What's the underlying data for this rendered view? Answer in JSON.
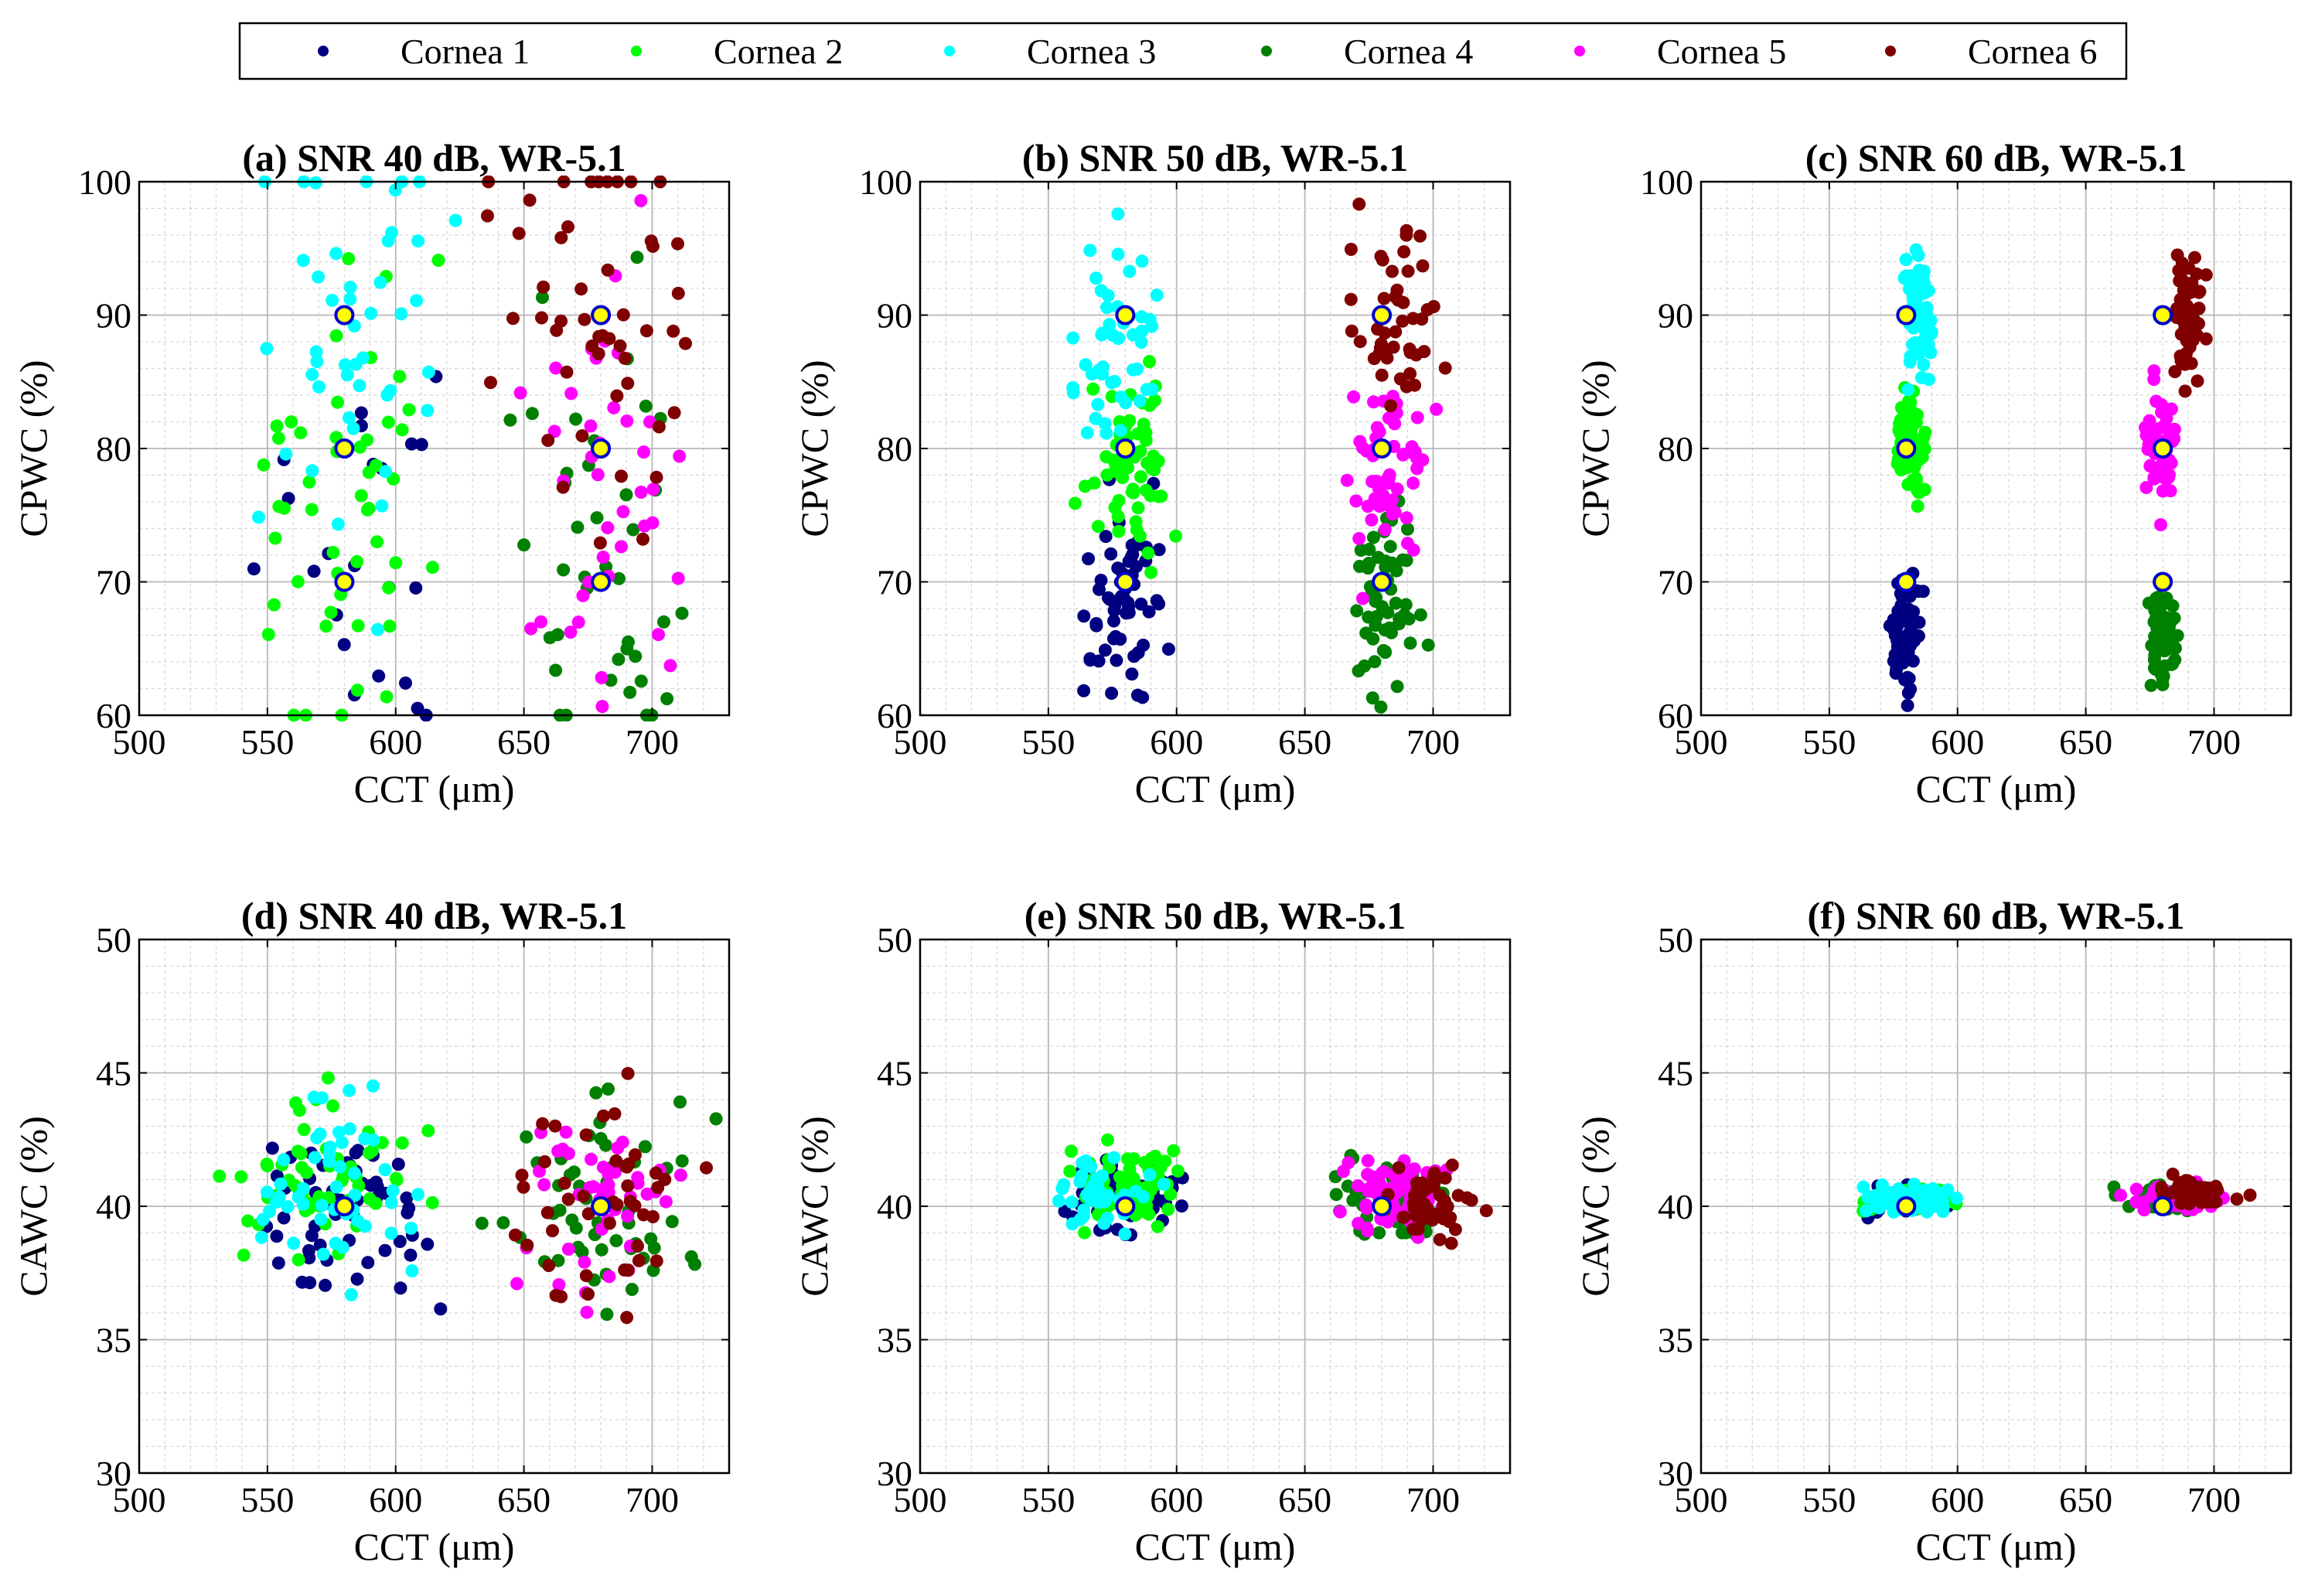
{
  "legend": {
    "entries": [
      {
        "label": "Cornea 1",
        "color": "#000080"
      },
      {
        "label": "Cornea 2",
        "color": "#00ff00"
      },
      {
        "label": "Cornea 3",
        "color": "#00ffff"
      },
      {
        "label": "Cornea 4",
        "color": "#008000"
      },
      {
        "label": "Cornea 5",
        "color": "#ff00ff"
      },
      {
        "label": "Cornea 6",
        "color": "#800000"
      }
    ]
  },
  "chart_data": [
    {
      "id": "a",
      "type": "scatter",
      "title": "(a) SNR  40 dB, WR-5.1",
      "xlabel": "CCT (μm)",
      "ylabel": "CPWC (%)",
      "xlim": [
        500,
        730
      ],
      "ylim": [
        60,
        100
      ],
      "xticks": [
        500,
        550,
        600,
        650,
        700
      ],
      "yticks": [
        60,
        70,
        80,
        90,
        100
      ],
      "targets": [
        [
          580,
          90
        ],
        [
          580,
          80
        ],
        [
          580,
          70
        ],
        [
          680,
          90
        ],
        [
          680,
          80
        ],
        [
          680,
          70
        ]
      ],
      "spread": [
        24,
        12
      ],
      "cluster_jitter": 0,
      "series": [
        {
          "name": "Cornea 1",
          "center": [
            580,
            72
          ],
          "n": 22,
          "walls": true
        },
        {
          "name": "Cornea 2",
          "center": [
            580,
            78
          ],
          "n": 50,
          "walls": true
        },
        {
          "name": "Cornea 3",
          "center": [
            580,
            88
          ],
          "n": 45,
          "walls": true
        },
        {
          "name": "Cornea 4",
          "center": [
            680,
            72
          ],
          "n": 40,
          "walls": true
        },
        {
          "name": "Cornea 5",
          "center": [
            680,
            78
          ],
          "n": 40,
          "walls": true
        },
        {
          "name": "Cornea 6",
          "center": [
            680,
            90
          ],
          "n": 50,
          "walls": true
        }
      ]
    },
    {
      "id": "b",
      "type": "scatter",
      "title": "(b) SNR  50 dB, WR-5.1",
      "xlabel": "CCT (μm)",
      "ylabel": "CPWC (%)",
      "xlim": [
        500,
        730
      ],
      "ylim": [
        60,
        100
      ],
      "xticks": [
        500,
        550,
        600,
        650,
        700
      ],
      "yticks": [
        60,
        70,
        80,
        90,
        100
      ],
      "targets": [
        [
          580,
          90
        ],
        [
          580,
          80
        ],
        [
          580,
          70
        ],
        [
          680,
          90
        ],
        [
          680,
          80
        ],
        [
          680,
          70
        ]
      ],
      "spread": [
        11,
        5
      ],
      "cluster_jitter": 0,
      "series": [
        {
          "name": "Cornea 1",
          "center": [
            580,
            68
          ],
          "n": 60,
          "walls": true
        },
        {
          "name": "Cornea 2",
          "center": [
            582,
            79
          ],
          "n": 60,
          "walls": true
        },
        {
          "name": "Cornea 3",
          "center": [
            578,
            89
          ],
          "n": 50,
          "walls": true
        },
        {
          "name": "Cornea 4",
          "center": [
            682,
            69
          ],
          "n": 60,
          "walls": true
        },
        {
          "name": "Cornea 5",
          "center": [
            680,
            78
          ],
          "n": 55,
          "walls": true
        },
        {
          "name": "Cornea 6",
          "center": [
            685,
            90
          ],
          "n": 45,
          "walls": true
        }
      ]
    },
    {
      "id": "c",
      "type": "scatter",
      "title": "(c) SNR  60 dB, WR-5.1",
      "xlabel": "CCT (μm)",
      "ylabel": "CPWC (%)",
      "xlim": [
        500,
        730
      ],
      "ylim": [
        60,
        100
      ],
      "xticks": [
        500,
        550,
        600,
        650,
        700
      ],
      "yticks": [
        60,
        70,
        80,
        90,
        100
      ],
      "targets": [
        [
          580,
          90
        ],
        [
          580,
          80
        ],
        [
          580,
          70
        ],
        [
          680,
          90
        ],
        [
          680,
          80
        ],
        [
          680,
          70
        ]
      ],
      "spread": [
        4,
        3
      ],
      "cluster_jitter": 0,
      "series": [
        {
          "name": "Cornea 1",
          "center": [
            580,
            66
          ],
          "n": 60,
          "walls": true
        },
        {
          "name": "Cornea 2",
          "center": [
            582,
            80
          ],
          "n": 55,
          "walls": true
        },
        {
          "name": "Cornea 3",
          "center": [
            585,
            90
          ],
          "n": 60,
          "walls": true
        },
        {
          "name": "Cornea 4",
          "center": [
            680,
            66
          ],
          "n": 60,
          "walls": true
        },
        {
          "name": "Cornea 5",
          "center": [
            680,
            80
          ],
          "n": 55,
          "walls": true
        },
        {
          "name": "Cornea 6",
          "center": [
            690,
            90
          ],
          "n": 55,
          "walls": true
        }
      ]
    },
    {
      "id": "d",
      "type": "scatter",
      "title": "(d) SNR  40 dB, WR-5.1",
      "xlabel": "CCT (μm)",
      "ylabel": "CAWC (%)",
      "xlim": [
        500,
        730
      ],
      "ylim": [
        30,
        50
      ],
      "xticks": [
        500,
        550,
        600,
        650,
        700
      ],
      "yticks": [
        30,
        35,
        40,
        45,
        50
      ],
      "targets": [
        [
          580,
          40
        ],
        [
          680,
          40
        ]
      ],
      "spread": [
        25,
        2.6
      ],
      "cluster_jitter": 0,
      "series": [
        {
          "name": "Cornea 1",
          "center": [
            580,
            40
          ],
          "n": 55,
          "walls": true
        },
        {
          "name": "Cornea 2",
          "center": [
            575,
            41
          ],
          "n": 55,
          "walls": true
        },
        {
          "name": "Cornea 3",
          "center": [
            575,
            41
          ],
          "n": 50,
          "walls": true
        },
        {
          "name": "Cornea 4",
          "center": [
            680,
            40
          ],
          "n": 55,
          "walls": true
        },
        {
          "name": "Cornea 5",
          "center": [
            680,
            40
          ],
          "n": 45,
          "walls": true
        },
        {
          "name": "Cornea 6",
          "center": [
            680,
            40
          ],
          "n": 45,
          "walls": true
        }
      ]
    },
    {
      "id": "e",
      "type": "scatter",
      "title": "(e) SNR  50 dB, WR-5.1",
      "xlabel": "CCT (μm)",
      "ylabel": "CAWC (%)",
      "xlim": [
        500,
        730
      ],
      "ylim": [
        30,
        50
      ],
      "xticks": [
        500,
        550,
        600,
        650,
        700
      ],
      "yticks": [
        30,
        35,
        40,
        45,
        50
      ],
      "targets": [
        [
          580,
          40
        ],
        [
          680,
          40
        ]
      ],
      "spread": [
        14,
        1.0
      ],
      "cluster_jitter": 0,
      "series": [
        {
          "name": "Cornea 1",
          "center": [
            580,
            40.5
          ],
          "n": 60,
          "walls": true
        },
        {
          "name": "Cornea 2",
          "center": [
            580,
            40.8
          ],
          "n": 70,
          "walls": true
        },
        {
          "name": "Cornea 3",
          "center": [
            570,
            40.5
          ],
          "n": 45,
          "walls": true
        },
        {
          "name": "Cornea 4",
          "center": [
            685,
            40.2
          ],
          "n": 70,
          "walls": true
        },
        {
          "name": "Cornea 5",
          "center": [
            685,
            40.6
          ],
          "n": 65,
          "walls": true
        },
        {
          "name": "Cornea 6",
          "center": [
            700,
            40.3
          ],
          "n": 45,
          "walls": true
        }
      ]
    },
    {
      "id": "f",
      "type": "scatter",
      "title": "(f) SNR  60 dB, WR-5.1",
      "xlabel": "CCT (μm)",
      "ylabel": "CAWC (%)",
      "xlim": [
        500,
        730
      ],
      "ylim": [
        30,
        50
      ],
      "xticks": [
        500,
        550,
        600,
        650,
        700
      ],
      "yticks": [
        30,
        35,
        40,
        45,
        50
      ],
      "targets": [
        [
          580,
          40
        ],
        [
          680,
          40
        ]
      ],
      "spread": [
        12,
        0.35
      ],
      "cluster_jitter": 0,
      "series": [
        {
          "name": "Cornea 1",
          "center": [
            580,
            40.2
          ],
          "n": 40,
          "walls": false
        },
        {
          "name": "Cornea 2",
          "center": [
            582,
            40.2
          ],
          "n": 60,
          "walls": false
        },
        {
          "name": "Cornea 3",
          "center": [
            582,
            40.3
          ],
          "n": 70,
          "walls": false
        },
        {
          "name": "Cornea 4",
          "center": [
            682,
            40.3
          ],
          "n": 45,
          "walls": false
        },
        {
          "name": "Cornea 5",
          "center": [
            685,
            40.3
          ],
          "n": 55,
          "walls": false
        },
        {
          "name": "Cornea 6",
          "center": [
            690,
            40.5
          ],
          "n": 50,
          "walls": false
        }
      ]
    }
  ]
}
